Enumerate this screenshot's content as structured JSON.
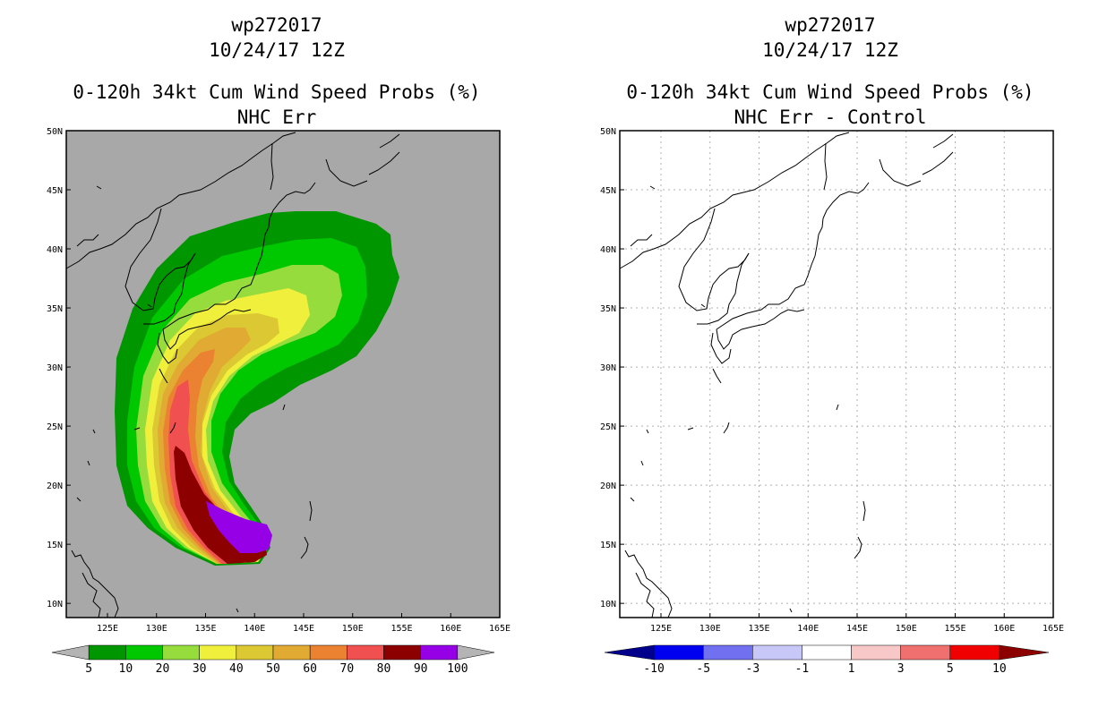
{
  "panels": [
    {
      "id": "left",
      "title_line1": "wp272017",
      "title_line2": "10/24/17 12Z",
      "title_line3": "0-120h 34kt Cum Wind Speed Probs (%)",
      "title_line4": "NHC Err",
      "background_color": "#a8a8a8",
      "colorbar": {
        "colors": [
          "#b4b4b4",
          "#009600",
          "#00c800",
          "#96dc3c",
          "#f0f03c",
          "#dcc832",
          "#e1aa32",
          "#eb8232",
          "#f05050",
          "#8c0000",
          "#9600e6",
          "#b4b4b4"
        ],
        "labels": [
          "5",
          "10",
          "20",
          "30",
          "40",
          "50",
          "60",
          "70",
          "80",
          "90",
          "100"
        ]
      }
    },
    {
      "id": "right",
      "title_line1": "wp272017",
      "title_line2": "10/24/17 12Z",
      "title_line3": "0-120h 34kt Cum Wind Speed Probs (%)",
      "title_line4": "NHC Err - Control",
      "background_color": "#ffffff",
      "colorbar": {
        "colors": [
          "#00008c",
          "#0000f0",
          "#7070f0",
          "#c8c8f8",
          "#ffffff",
          "#f8c8c8",
          "#f07070",
          "#f00000",
          "#8c0000"
        ],
        "labels": [
          "-10",
          "-5",
          "-3",
          "-1",
          "1",
          "3",
          "5",
          "10"
        ]
      }
    }
  ],
  "map_axes": {
    "lon_labels": [
      "125E",
      "130E",
      "135E",
      "140E",
      "145E",
      "150E",
      "155E",
      "160E",
      "165E"
    ],
    "lat_labels": [
      "50N",
      "45N",
      "40N",
      "35N",
      "30N",
      "25N",
      "20N",
      "15N",
      "10N"
    ]
  },
  "probability_field": {
    "description_levels_pct": [
      5,
      10,
      20,
      30,
      40,
      50,
      60,
      70,
      80,
      90,
      100
    ],
    "level_colors": [
      "#009600",
      "#00c800",
      "#96dc3c",
      "#f0f03c",
      "#dcc832",
      "#e1aa32",
      "#eb8232",
      "#f05050",
      "#8c0000",
      "#9600e6"
    ]
  }
}
